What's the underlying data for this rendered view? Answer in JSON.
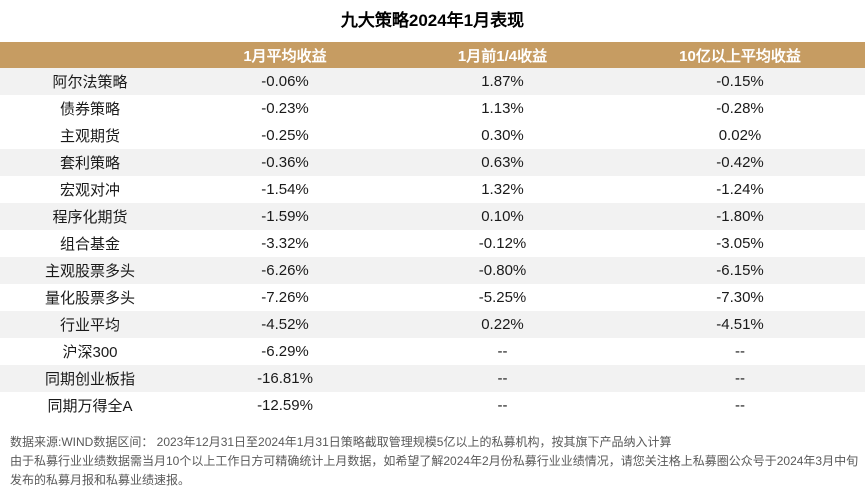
{
  "page_title": "九大策略2024年1月表现",
  "chart_data": {
    "type": "table",
    "title": "九大策略2024年1月表现",
    "columns": [
      "",
      "1月平均收益",
      "1月前1/4收益",
      "10亿以上平均收益"
    ],
    "rows": [
      {
        "name": "阿尔法策略",
        "values": [
          "-0.06%",
          "1.87%",
          "-0.15%"
        ],
        "shaded": true
      },
      {
        "name": "债券策略",
        "values": [
          "-0.23%",
          "1.13%",
          "-0.28%"
        ],
        "shaded": false
      },
      {
        "name": "主观期货",
        "values": [
          "-0.25%",
          "0.30%",
          "0.02%"
        ],
        "shaded": false
      },
      {
        "name": "套利策略",
        "values": [
          "-0.36%",
          "0.63%",
          "-0.42%"
        ],
        "shaded": true
      },
      {
        "name": "宏观对冲",
        "values": [
          "-1.54%",
          "1.32%",
          "-1.24%"
        ],
        "shaded": false
      },
      {
        "name": "程序化期货",
        "values": [
          "-1.59%",
          "0.10%",
          "-1.80%"
        ],
        "shaded": true
      },
      {
        "name": "组合基金",
        "values": [
          "-3.32%",
          "-0.12%",
          "-3.05%"
        ],
        "shaded": false
      },
      {
        "name": "主观股票多头",
        "values": [
          "-6.26%",
          "-0.80%",
          "-6.15%"
        ],
        "shaded": true
      },
      {
        "name": "量化股票多头",
        "values": [
          "-7.26%",
          "-5.25%",
          "-7.30%"
        ],
        "shaded": false
      },
      {
        "name": "行业平均",
        "values": [
          "-4.52%",
          "0.22%",
          "-4.51%"
        ],
        "shaded": true
      },
      {
        "name": "沪深300",
        "values": [
          "-6.29%",
          "--",
          "--"
        ],
        "shaded": false
      },
      {
        "name": "同期创业板指",
        "values": [
          "-16.81%",
          "--",
          "--"
        ],
        "shaded": true
      },
      {
        "name": "同期万得全A",
        "values": [
          "-12.59%",
          "--",
          "--"
        ],
        "shaded": false
      }
    ]
  },
  "footnotes": [
    "数据来源:WIND数据区间： 2023年12月31日至2024年1月31日策略截取管理规模5亿以上的私募机构，按其旗下产品纳入计算",
    "由于私募行业业绩数据需当月10个以上工作日方可精确统计上月数据，如希望了解2024年2月份私募行业业绩情况，请您关注格上私募圈公众号于2024年3月中旬",
    "发布的私募月报和私募业绩速报。"
  ],
  "colors": {
    "header_background": "#C69C62",
    "header_text": "#FFFFFF",
    "row_stripe": "#F2F2F2",
    "body_text": "#1A1A1A",
    "footnote_text": "#595959",
    "title_text": "#000000"
  }
}
